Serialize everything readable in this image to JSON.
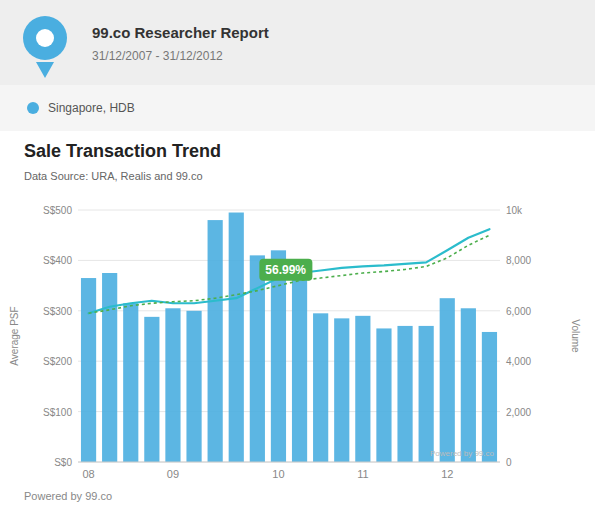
{
  "chart_data": {
    "type": "bar",
    "title": "Sale Transaction Trend",
    "subtitle": "Data Source: URA, Realis and 99.co",
    "header_title": "99.co Researcher Report",
    "header_subtitle": "31/12/2007 - 31/12/2012",
    "footer": "Powered by 99.co",
    "watermark": "Powered by 99.co",
    "annotation": "56.99%",
    "y_label": "Average PSF",
    "y2_label": "Volume",
    "legend": "top",
    "grid": true,
    "categories": [
      "08",
      null,
      null,
      null,
      "09",
      null,
      null,
      null,
      null,
      "10",
      null,
      null,
      null,
      "11",
      null,
      null,
      null,
      "12",
      null,
      null
    ],
    "series": [
      {
        "name": "Singapore, HDB",
        "type": "bar",
        "color": "#4aaee0",
        "values": [
          365,
          375,
          315,
          288,
          305,
          300,
          480,
          495,
          410,
          420,
          370,
          295,
          285,
          290,
          265,
          270,
          270,
          325,
          305,
          258
        ]
      },
      {
        "type": "line",
        "color": "#2bbccc",
        "line_style": "solid",
        "values": [
          295,
          308,
          315,
          320,
          315,
          315,
          320,
          325,
          345,
          365,
          375,
          380,
          385,
          388,
          390,
          393,
          396,
          420,
          445,
          462
        ]
      },
      {
        "type": "line",
        "color": "#4cae4c",
        "line_style": "dotted",
        "values": [
          295,
          302,
          310,
          315,
          318,
          320,
          325,
          332,
          340,
          350,
          360,
          365,
          370,
          375,
          378,
          382,
          388,
          405,
          430,
          450
        ]
      }
    ],
    "ylim": [
      0,
      500
    ],
    "yticks": [
      {
        "value": 0,
        "label": "S$0"
      },
      {
        "value": 100,
        "label": "S$100"
      },
      {
        "value": 200,
        "label": "S$200"
      },
      {
        "value": 300,
        "label": "S$300"
      },
      {
        "value": 400,
        "label": "S$400"
      },
      {
        "value": 500,
        "label": "S$500"
      }
    ],
    "y2lim": [
      0,
      10000
    ],
    "y2ticks": [
      0,
      {
        "value": 2000,
        "label": "2,000"
      },
      {
        "value": 4000,
        "label": "4,000"
      },
      {
        "value": 6000,
        "label": "6,000"
      },
      {
        "value": 8000,
        "label": "8,000"
      },
      {
        "value": 10000,
        "label": "10k"
      }
    ]
  }
}
